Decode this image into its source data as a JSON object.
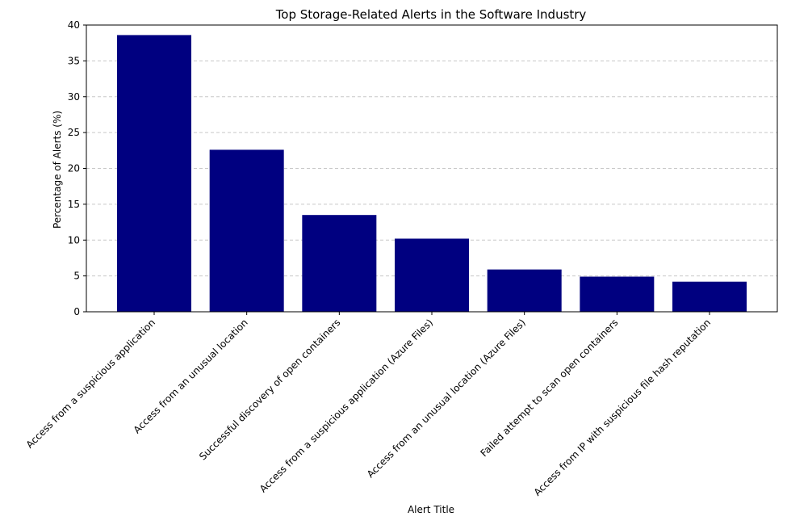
{
  "chart_data": {
    "type": "bar",
    "title": "Top Storage-Related Alerts in the Software Industry",
    "xlabel": "Alert Title",
    "ylabel": "Percentage of Alerts (%)",
    "ylim": [
      0,
      40
    ],
    "yticks": [
      0,
      5,
      10,
      15,
      20,
      25,
      30,
      35,
      40
    ],
    "grid": "horizontal-dashed",
    "bar_color": "#000080",
    "categories": [
      "Access from a suspicious application",
      "Access from an unusual location",
      "Successful discovery of open containers",
      "Access from a suspicious application (Azure Files)",
      "Access from an unusual location (Azure Files)",
      "Failed attempt to scan open containers",
      "Access from IP with suspicious file hash reputation"
    ],
    "values": [
      38.6,
      22.6,
      13.5,
      10.2,
      5.9,
      4.9,
      4.2
    ]
  }
}
